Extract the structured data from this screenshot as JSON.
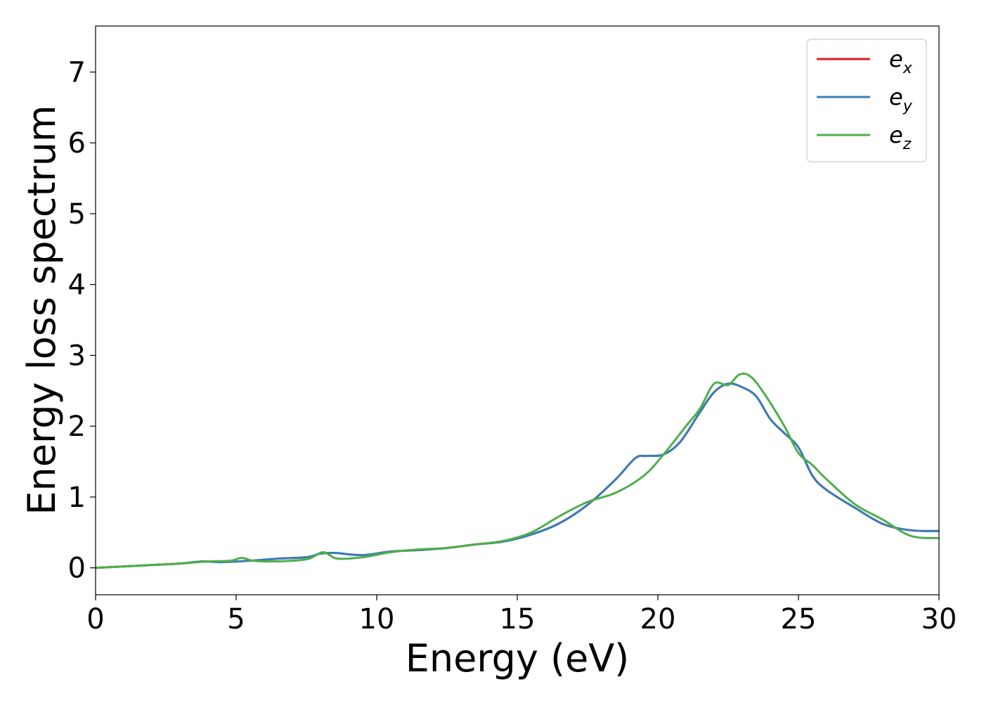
{
  "chart_data": {
    "type": "line",
    "title": "",
    "xlabel": "Energy (eV)",
    "ylabel": "Energy loss spectrum",
    "xlim": [
      0,
      30
    ],
    "ylim": [
      -0.38,
      7.65
    ],
    "xticks": [
      0,
      5,
      10,
      15,
      20,
      25,
      30
    ],
    "yticks": [
      0,
      1,
      2,
      3,
      4,
      5,
      6,
      7
    ],
    "grid": false,
    "legend_position": "top-right",
    "series": [
      {
        "name": "e_x",
        "legend_base": "e",
        "legend_sub": "x",
        "color": "#e41a1c",
        "x": [
          0,
          1,
          2,
          3,
          3.8,
          4.5,
          5.5,
          6.5,
          7.5,
          8,
          8.5,
          9.5,
          10.5,
          11.5,
          12.5,
          13.5,
          14.5,
          15.5,
          16.5,
          17.5,
          18.5,
          19.2,
          19.6,
          20.2,
          20.8,
          21.5,
          22,
          22.5,
          23,
          23.5,
          24,
          24.5,
          25,
          25.5,
          26,
          27,
          28,
          29,
          30
        ],
        "y": [
          0,
          0.02,
          0.04,
          0.06,
          0.09,
          0.08,
          0.1,
          0.13,
          0.15,
          0.2,
          0.21,
          0.18,
          0.23,
          0.25,
          0.28,
          0.33,
          0.37,
          0.47,
          0.63,
          0.89,
          1.25,
          1.55,
          1.58,
          1.6,
          1.78,
          2.2,
          2.48,
          2.6,
          2.55,
          2.42,
          2.1,
          1.9,
          1.7,
          1.3,
          1.1,
          0.85,
          0.62,
          0.53,
          0.52
        ]
      },
      {
        "name": "e_y",
        "legend_base": "e",
        "legend_sub": "y",
        "color": "#377eb8",
        "x": [
          0,
          1,
          2,
          3,
          3.8,
          4.5,
          5.5,
          6.5,
          7.5,
          8,
          8.5,
          9.5,
          10.5,
          11.5,
          12.5,
          13.5,
          14.5,
          15.5,
          16.5,
          17.5,
          18.5,
          19.2,
          19.6,
          20.2,
          20.8,
          21.5,
          22,
          22.5,
          23,
          23.5,
          24,
          24.5,
          25,
          25.5,
          26,
          27,
          28,
          29,
          30
        ],
        "y": [
          0,
          0.02,
          0.04,
          0.06,
          0.09,
          0.08,
          0.1,
          0.13,
          0.15,
          0.2,
          0.21,
          0.18,
          0.23,
          0.25,
          0.28,
          0.33,
          0.37,
          0.47,
          0.63,
          0.89,
          1.25,
          1.55,
          1.58,
          1.6,
          1.78,
          2.2,
          2.48,
          2.6,
          2.55,
          2.42,
          2.1,
          1.9,
          1.7,
          1.3,
          1.1,
          0.85,
          0.62,
          0.53,
          0.52
        ]
      },
      {
        "name": "e_z",
        "legend_base": "e",
        "legend_sub": "z",
        "color": "#4daf4a",
        "x": [
          0,
          1,
          2,
          3,
          4,
          4.8,
          5.2,
          5.6,
          6.2,
          7,
          7.6,
          8.1,
          8.6,
          9.5,
          10.5,
          11.5,
          12.5,
          13.5,
          14.5,
          15.5,
          16.5,
          17.5,
          18.5,
          19.5,
          20.2,
          21,
          21.5,
          22,
          22.5,
          22.9,
          23.3,
          23.8,
          24.5,
          25,
          25.5,
          26,
          27,
          28,
          29,
          30
        ],
        "y": [
          0,
          0.02,
          0.04,
          0.06,
          0.09,
          0.1,
          0.14,
          0.1,
          0.09,
          0.1,
          0.13,
          0.22,
          0.13,
          0.15,
          0.22,
          0.26,
          0.28,
          0.33,
          0.38,
          0.5,
          0.73,
          0.93,
          1.06,
          1.3,
          1.6,
          2.0,
          2.25,
          2.6,
          2.58,
          2.73,
          2.7,
          2.45,
          2.0,
          1.62,
          1.45,
          1.25,
          0.9,
          0.68,
          0.45,
          0.42
        ]
      }
    ]
  }
}
